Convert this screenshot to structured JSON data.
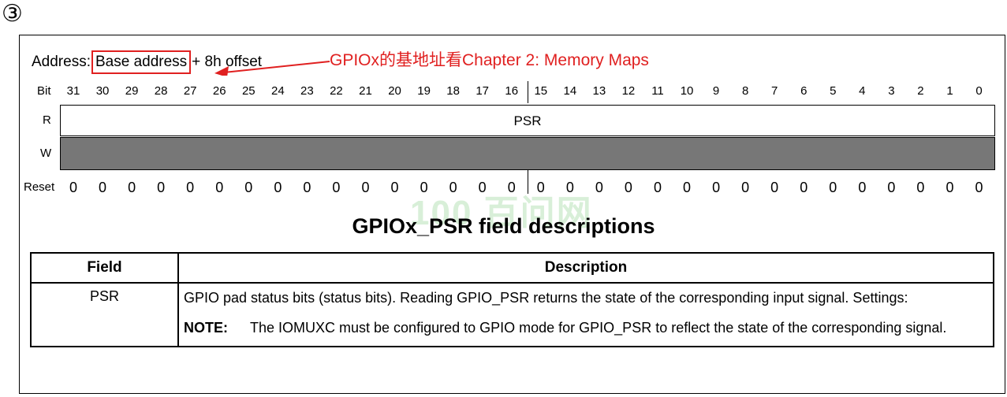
{
  "circle_number": "③",
  "address": {
    "prefix": "Address:",
    "boxed": "Base address",
    "suffix": "+ 8h offset"
  },
  "annotation": "GPIOx的基地址看Chapter 2: Memory Maps",
  "register": {
    "bit_label": "Bit",
    "r_label": "R",
    "w_label": "W",
    "reset_label": "Reset",
    "field_name": "PSR",
    "bits": [
      "31",
      "30",
      "29",
      "28",
      "27",
      "26",
      "25",
      "24",
      "23",
      "22",
      "21",
      "20",
      "19",
      "18",
      "17",
      "16",
      "15",
      "14",
      "13",
      "12",
      "11",
      "10",
      "9",
      "8",
      "7",
      "6",
      "5",
      "4",
      "3",
      "2",
      "1",
      "0"
    ],
    "reset_values": [
      "0",
      "0",
      "0",
      "0",
      "0",
      "0",
      "0",
      "0",
      "0",
      "0",
      "0",
      "0",
      "0",
      "0",
      "0",
      "0",
      "0",
      "0",
      "0",
      "0",
      "0",
      "0",
      "0",
      "0",
      "0",
      "0",
      "0",
      "0",
      "0",
      "0",
      "0",
      "0"
    ]
  },
  "watermark": "100 百问网",
  "table": {
    "title": "GPIOx_PSR field descriptions",
    "headers": {
      "field": "Field",
      "description": "Description"
    },
    "row": {
      "field": "PSR",
      "description": "GPIO pad status bits (status bits). Reading GPIO_PSR returns the state of the corresponding input signal. Settings:",
      "note_label": "NOTE:",
      "note_text": "The IOMUXC must be configured to GPIO mode for GPIO_PSR to reflect the state of the corresponding signal."
    }
  },
  "colors": {
    "annotation": "#e02020",
    "write_field": "#777777"
  }
}
